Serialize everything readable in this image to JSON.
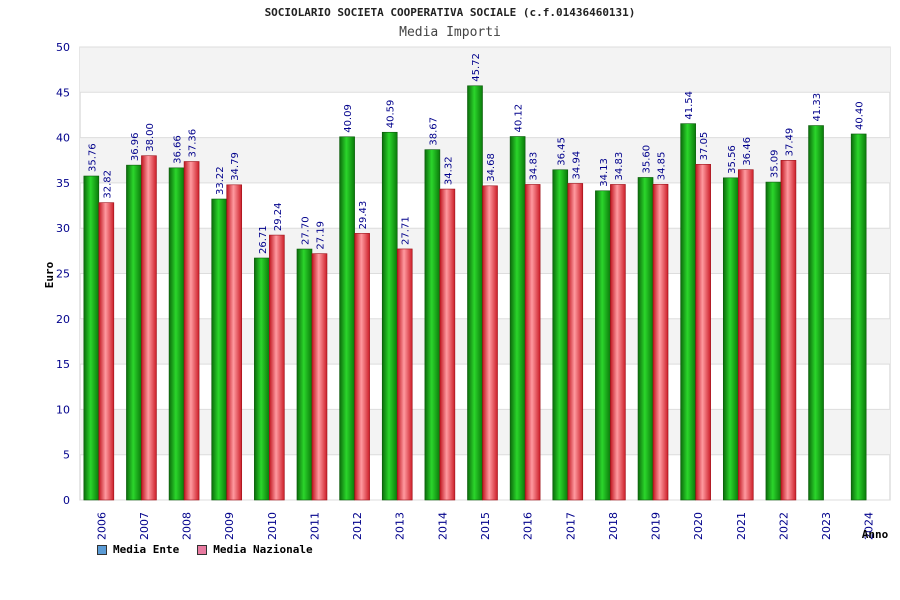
{
  "chart_data": {
    "type": "bar",
    "title": "SOCIOLARIO SOCIETA COOPERATIVA SOCIALE (c.f.01436460131)",
    "subtitle": "Media Importi",
    "xlabel": "Anno",
    "ylabel": "Euro",
    "ylim": [
      0,
      50
    ],
    "yticks": [
      "0",
      "5",
      "10",
      "15",
      "20",
      "25",
      "30",
      "35",
      "40",
      "45",
      "50"
    ],
    "grid": true,
    "legend_position": "bottom-left",
    "categories": [
      "2006",
      "2007",
      "2008",
      "2009",
      "2010",
      "2011",
      "2012",
      "2013",
      "2014",
      "2015",
      "2016",
      "2017",
      "2018",
      "2019",
      "2020",
      "2021",
      "2022",
      "2023",
      "2024"
    ],
    "series": [
      {
        "name": "Media Ente",
        "color": "#18a418",
        "legend_color": "#5b9bd5",
        "values": [
          35.76,
          36.96,
          36.66,
          33.22,
          26.71,
          27.7,
          40.09,
          40.59,
          38.67,
          45.72,
          40.12,
          36.45,
          34.13,
          35.6,
          41.54,
          35.56,
          35.09,
          41.33,
          40.4
        ],
        "labels": [
          "35.76",
          "36.96",
          "36.66",
          "33.22",
          "26.71",
          "27.70",
          "40.09",
          "40.59",
          "38.67",
          "45.72",
          "40.12",
          "36.45",
          "34.13",
          "35.60",
          "41.54",
          "35.56",
          "35.09",
          "41.33",
          "40.40"
        ]
      },
      {
        "name": "Media Nazionale",
        "color": "#e8323c",
        "legend_color": "#e87aa0",
        "values": [
          32.82,
          38.0,
          37.36,
          34.79,
          29.24,
          27.19,
          29.43,
          27.71,
          34.32,
          34.68,
          34.83,
          34.94,
          34.83,
          34.85,
          37.05,
          36.46,
          37.49,
          null,
          null
        ],
        "labels": [
          "32.82",
          "38.00",
          "37.36",
          "34.79",
          "29.24",
          "27.19",
          "29.43",
          "27.71",
          "34.32",
          "34.68",
          "34.83",
          "34.94",
          "34.83",
          "34.85",
          "37.05",
          "36.46",
          "37.49",
          "",
          ""
        ]
      }
    ]
  }
}
